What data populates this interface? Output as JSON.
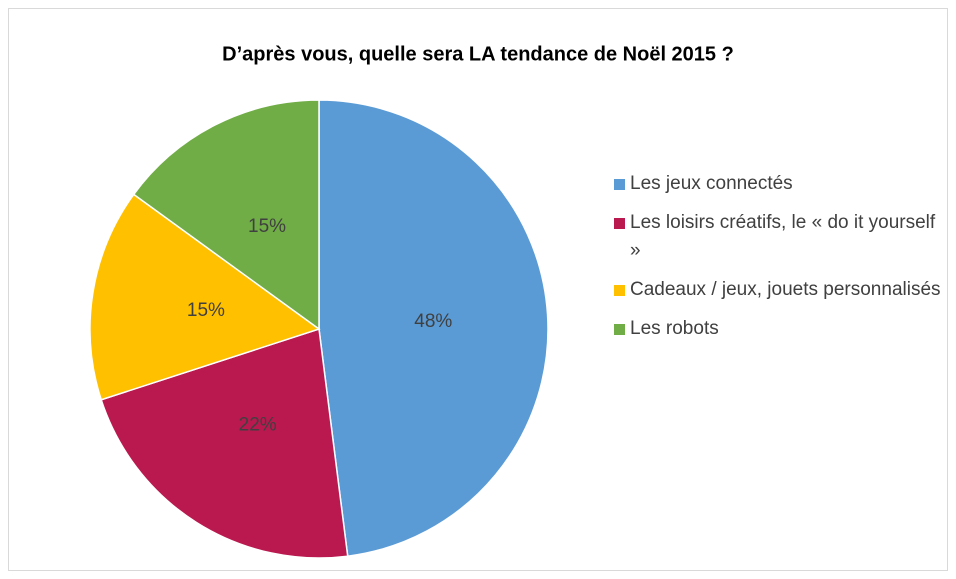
{
  "chart_data": {
    "type": "pie",
    "title": "D’après vous, quelle sera LA tendance de Noël 2015 ?",
    "categories": [
      "Les jeux connectés",
      "Les loisirs créatifs, le « do it yourself »",
      "Cadeaux / jeux, jouets personnalisés",
      "Les robots"
    ],
    "values": [
      48,
      22,
      15,
      15
    ],
    "value_labels": [
      "48%",
      "22%",
      "15%",
      "15%"
    ],
    "colors": [
      "#5b9bd5",
      "#b9194f",
      "#ffc000",
      "#70ad47"
    ],
    "legend": "right"
  }
}
